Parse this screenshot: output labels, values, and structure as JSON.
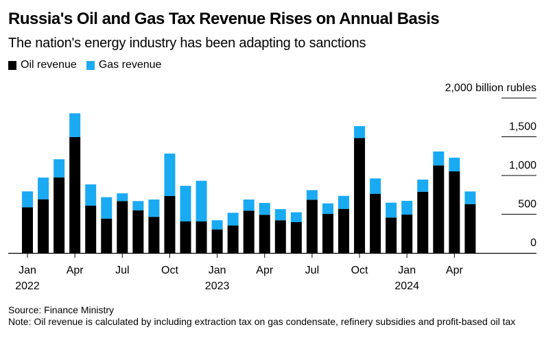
{
  "header": {
    "title": "Russia's Oil and Gas Tax Revenue Rises on Annual Basis",
    "subtitle": "The nation's energy industry has been adapting to sanctions"
  },
  "legend": [
    {
      "label": "Oil revenue",
      "color": "#000000"
    },
    {
      "label": "Gas revenue",
      "color": "#1aaaf2"
    }
  ],
  "footer": {
    "source": "Source: Finance Ministry",
    "note": "Note: Oil revenue is calculated by including extraction tax on gas condensate, refinery subsidies and profit-based oil tax"
  },
  "chart_data": {
    "type": "bar",
    "stacked": true,
    "title": "Russia's Oil and Gas Tax Revenue Rises on Annual Basis",
    "subtitle": "The nation's energy industry has been adapting to sanctions",
    "ylabel": "billion rubles",
    "ylim": [
      0,
      2000
    ],
    "yticks": [
      {
        "value": 0,
        "label": "0"
      },
      {
        "value": 500,
        "label": "500"
      },
      {
        "value": 1000,
        "label": "1,000"
      },
      {
        "value": 1500,
        "label": "1,500"
      },
      {
        "value": 2000,
        "label": "2,000 billion rubles"
      }
    ],
    "y_axis_position": "right",
    "grid": true,
    "legend_position": "top-left",
    "categories": [
      "Jan 2022",
      "Feb 2022",
      "Mar 2022",
      "Apr 2022",
      "May 2022",
      "Jun 2022",
      "Jul 2022",
      "Aug 2022",
      "Sep 2022",
      "Oct 2022",
      "Nov 2022",
      "Dec 2022",
      "Jan 2023",
      "Feb 2023",
      "Mar 2023",
      "Apr 2023",
      "May 2023",
      "Jun 2023",
      "Jul 2023",
      "Aug 2023",
      "Sep 2023",
      "Oct 2023",
      "Nov 2023",
      "Dec 2023",
      "Jan 2024",
      "Feb 2024",
      "Mar 2024",
      "Apr 2024",
      "May 2024"
    ],
    "xticks": [
      {
        "index": 0,
        "label": "Jan",
        "year": "2022"
      },
      {
        "index": 3,
        "label": "Apr",
        "year": ""
      },
      {
        "index": 6,
        "label": "Jul",
        "year": ""
      },
      {
        "index": 9,
        "label": "Oct",
        "year": ""
      },
      {
        "index": 12,
        "label": "Jan",
        "year": "2023"
      },
      {
        "index": 15,
        "label": "Apr",
        "year": ""
      },
      {
        "index": 18,
        "label": "Jul",
        "year": ""
      },
      {
        "index": 21,
        "label": "Oct",
        "year": ""
      },
      {
        "index": 24,
        "label": "Jan",
        "year": "2024"
      },
      {
        "index": 27,
        "label": "Apr",
        "year": ""
      }
    ],
    "series": [
      {
        "name": "Oil revenue",
        "color": "#000000",
        "values": [
          590,
          693,
          976,
          1496,
          611,
          442,
          670,
          551,
          466,
          735,
          407,
          407,
          304,
          354,
          546,
          493,
          422,
          398,
          687,
          504,
          569,
          1484,
          764,
          457,
          496,
          790,
          1130,
          1053,
          631
        ]
      },
      {
        "name": "Gas revenue",
        "color": "#1aaaf2",
        "values": [
          205,
          280,
          234,
          307,
          274,
          278,
          100,
          119,
          224,
          548,
          460,
          525,
          118,
          165,
          144,
          153,
          144,
          127,
          124,
          136,
          168,
          153,
          198,
          192,
          177,
          157,
          180,
          177,
          163
        ]
      }
    ]
  }
}
